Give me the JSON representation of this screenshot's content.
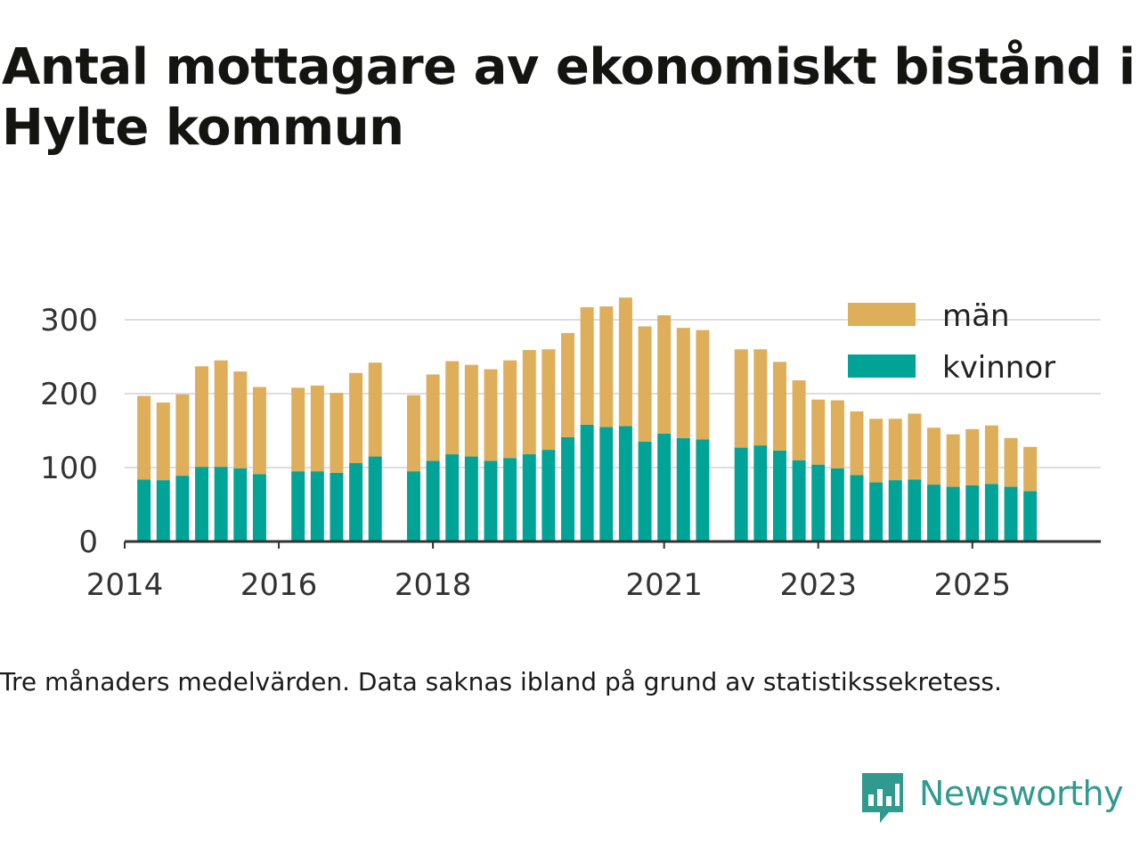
{
  "header": {
    "title": "Antal mottagare av ekonomiskt bistånd i Hylte kommun"
  },
  "caption": "Tre månaders medelvärden. Data saknas ibland på grund av statistikssekretess.",
  "brand": {
    "name": "Newsworthy",
    "icon": "newsworthy-logo-icon",
    "color": "#2f9a8d"
  },
  "chart_data": {
    "type": "bar",
    "stacked": true,
    "title": "Antal mottagare av ekonomiskt bistånd i Hylte kommun",
    "xlabel": "",
    "ylabel": "",
    "ylim": [
      0,
      330
    ],
    "yticks": [
      0,
      100,
      200,
      300
    ],
    "xlim": [
      "2014-01",
      "2026-09"
    ],
    "xticks": [
      {
        "label": "2014",
        "date": "2014-01"
      },
      {
        "label": "2016",
        "date": "2016-01"
      },
      {
        "label": "2018",
        "date": "2018-01"
      },
      {
        "label": "2021",
        "date": "2021-01"
      },
      {
        "label": "2023",
        "date": "2023-01"
      },
      {
        "label": "2025",
        "date": "2025-01"
      }
    ],
    "grid": true,
    "legend_position": "top-right",
    "x": [
      "2014-04",
      "2014-07",
      "2014-10",
      "2015-01",
      "2015-04",
      "2015-07",
      "2015-10",
      "2016-04",
      "2016-07",
      "2016-10",
      "2017-01",
      "2017-04",
      "2017-10",
      "2018-01",
      "2018-04",
      "2018-07",
      "2018-10",
      "2019-01",
      "2019-04",
      "2019-07",
      "2019-10",
      "2020-01",
      "2020-04",
      "2020-07",
      "2020-10",
      "2021-01",
      "2021-04",
      "2021-07",
      "2022-01",
      "2022-04",
      "2022-07",
      "2022-10",
      "2023-01",
      "2023-04",
      "2023-07",
      "2023-10",
      "2024-01",
      "2024-04",
      "2024-07",
      "2024-10",
      "2025-01",
      "2025-04",
      "2025-07",
      "2025-10"
    ],
    "series": [
      {
        "name": "kvinnor",
        "color": "#00a497",
        "values": [
          84,
          83,
          89,
          101,
          101,
          99,
          91,
          95,
          95,
          93,
          106,
          115,
          95,
          109,
          118,
          115,
          109,
          113,
          118,
          124,
          141,
          158,
          155,
          156,
          135,
          146,
          140,
          138,
          127,
          130,
          123,
          110,
          104,
          99,
          90,
          80,
          83,
          84,
          77,
          74,
          76,
          78,
          74,
          68
        ]
      },
      {
        "name": "män",
        "color": "#deae5a",
        "values": [
          113,
          105,
          110,
          136,
          144,
          131,
          118,
          113,
          116,
          108,
          122,
          127,
          103,
          117,
          126,
          124,
          124,
          132,
          141,
          136,
          141,
          159,
          163,
          174,
          156,
          160,
          149,
          148,
          133,
          130,
          120,
          108,
          88,
          92,
          86,
          86,
          83,
          89,
          77,
          71,
          76,
          79,
          66,
          60
        ]
      }
    ]
  }
}
